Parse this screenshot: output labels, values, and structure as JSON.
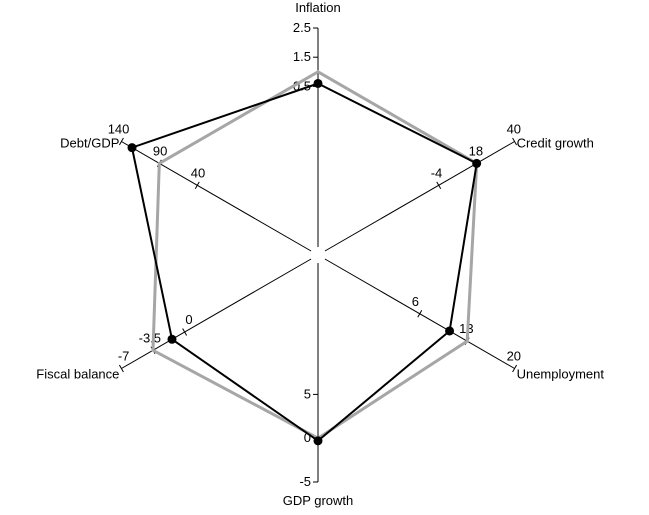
{
  "chart_data": {
    "type": "radar",
    "axes": [
      {
        "label": "Inflation",
        "min": -5,
        "max": 2.5,
        "ticks": [
          {
            "value": 2.5,
            "label": "2.5"
          },
          {
            "value": 1.5,
            "label": "1.5"
          },
          {
            "value": 0.5,
            "label": "0.5"
          }
        ]
      },
      {
        "label": "Credit growth",
        "min": -70,
        "max": 40,
        "ticks": [
          {
            "value": -4,
            "label": "-4"
          },
          {
            "value": 18,
            "label": "18"
          },
          {
            "value": 40,
            "label": "40"
          }
        ]
      },
      {
        "label": "Unemployment",
        "min": -8,
        "max": 20,
        "ticks": [
          {
            "value": 6,
            "label": "6"
          },
          {
            "value": 13,
            "label": "13"
          },
          {
            "value": 20,
            "label": "20"
          }
        ]
      },
      {
        "label": "GDP growth",
        "min": 20,
        "max": -5,
        "ticks": [
          {
            "value": 5,
            "label": "5"
          },
          {
            "value": 0,
            "label": "0"
          },
          {
            "value": -5,
            "label": "-5"
          }
        ]
      },
      {
        "label": "Fiscal balance",
        "min": 14,
        "max": -7,
        "ticks": [
          {
            "value": 0,
            "label": "0"
          },
          {
            "value": -3.5,
            "label": "-3.5"
          },
          {
            "value": -7,
            "label": "-7"
          }
        ]
      },
      {
        "label": "Debt/GDP",
        "min": -110,
        "max": 140,
        "ticks": [
          {
            "value": 40,
            "label": "40"
          },
          {
            "value": 90,
            "label": "90"
          },
          {
            "value": 140,
            "label": "140"
          }
        ]
      }
    ],
    "series": [
      {
        "color": "#a6a6a6",
        "markers": false,
        "values": [
          1.0,
          18,
          13,
          0,
          -3.5,
          90
        ]
      },
      {
        "color": "#000000",
        "markers": true,
        "values": [
          0.6,
          18,
          10.4,
          -0.3,
          -1.4,
          126
        ]
      }
    ]
  }
}
